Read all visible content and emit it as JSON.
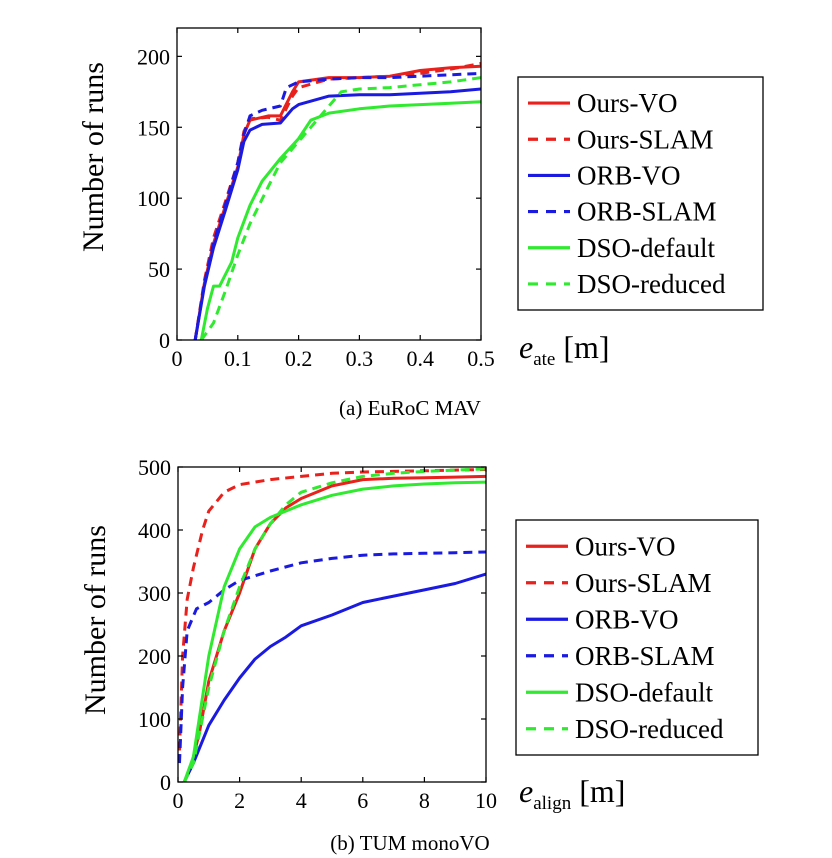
{
  "chart_data": [
    {
      "type": "line",
      "caption": "(a) EuRoC MAV",
      "ylabel": "Number of runs",
      "xlabel_main": "e",
      "xlabel_sub": "ate",
      "xlabel_unit": "[m]",
      "xlim": [
        0,
        0.5
      ],
      "ylim": [
        0,
        220
      ],
      "xticks": [
        0,
        0.1,
        0.2,
        0.3,
        0.4,
        0.5
      ],
      "yticks": [
        0,
        50,
        100,
        150,
        200
      ],
      "xtick_labels": [
        "0",
        "0.1",
        "0.2",
        "0.3",
        "0.4",
        "0.5"
      ],
      "ytick_labels": [
        "0",
        "50",
        "100",
        "150",
        "200"
      ],
      "legend_position": "right",
      "series": [
        {
          "name": "Ours-VO",
          "name_a": "Ours",
          "name_b": "VO",
          "color": "#e8211c",
          "dash": false,
          "points": [
            [
              0.03,
              0
            ],
            [
              0.045,
              40
            ],
            [
              0.06,
              68
            ],
            [
              0.08,
              95
            ],
            [
              0.1,
              122
            ],
            [
              0.11,
              145
            ],
            [
              0.12,
              155
            ],
            [
              0.15,
              158
            ],
            [
              0.17,
              158
            ],
            [
              0.19,
              175
            ],
            [
              0.2,
              182
            ],
            [
              0.25,
              185
            ],
            [
              0.3,
              185
            ],
            [
              0.35,
              186
            ],
            [
              0.4,
              190
            ],
            [
              0.45,
              192
            ],
            [
              0.5,
              193
            ]
          ]
        },
        {
          "name": "Ours-SLAM",
          "name_a": "Ours",
          "name_b": "SLAM",
          "color": "#e8211c",
          "dash": true,
          "points": [
            [
              0.03,
              0
            ],
            [
              0.045,
              42
            ],
            [
              0.06,
              72
            ],
            [
              0.08,
              98
            ],
            [
              0.1,
              125
            ],
            [
              0.11,
              147
            ],
            [
              0.12,
              156
            ],
            [
              0.15,
              157
            ],
            [
              0.17,
              155
            ],
            [
              0.19,
              172
            ],
            [
              0.2,
              178
            ],
            [
              0.25,
              184
            ],
            [
              0.3,
              185
            ],
            [
              0.35,
              186
            ],
            [
              0.4,
              188
            ],
            [
              0.45,
              191
            ],
            [
              0.5,
              195
            ]
          ]
        },
        {
          "name": "ORB-VO",
          "name_a": "ORB",
          "name_b": "VO",
          "color": "#1a1ae0",
          "dash": false,
          "points": [
            [
              0.03,
              0
            ],
            [
              0.045,
              38
            ],
            [
              0.06,
              65
            ],
            [
              0.08,
              92
            ],
            [
              0.1,
              120
            ],
            [
              0.11,
              140
            ],
            [
              0.12,
              148
            ],
            [
              0.14,
              152
            ],
            [
              0.17,
              153
            ],
            [
              0.19,
              163
            ],
            [
              0.2,
              166
            ],
            [
              0.25,
              172
            ],
            [
              0.3,
              173
            ],
            [
              0.35,
              173
            ],
            [
              0.4,
              174
            ],
            [
              0.45,
              175
            ],
            [
              0.5,
              177
            ]
          ]
        },
        {
          "name": "ORB-SLAM",
          "name_a": "ORB",
          "name_b": "SLAM",
          "color": "#1a1ae0",
          "dash": true,
          "points": [
            [
              0.03,
              0
            ],
            [
              0.045,
              40
            ],
            [
              0.06,
              68
            ],
            [
              0.08,
              96
            ],
            [
              0.1,
              125
            ],
            [
              0.11,
              145
            ],
            [
              0.12,
              158
            ],
            [
              0.14,
              162
            ],
            [
              0.17,
              165
            ],
            [
              0.18,
              178
            ],
            [
              0.2,
              182
            ],
            [
              0.25,
              184
            ],
            [
              0.3,
              185
            ],
            [
              0.35,
              185
            ],
            [
              0.4,
              186
            ],
            [
              0.45,
              187
            ],
            [
              0.5,
              188
            ]
          ]
        },
        {
          "name": "DSO-default",
          "name_a": "DSO",
          "name_b": "default",
          "color": "#2fea2f",
          "dash": false,
          "points": [
            [
              0.04,
              0
            ],
            [
              0.05,
              22
            ],
            [
              0.06,
              38
            ],
            [
              0.07,
              38
            ],
            [
              0.09,
              55
            ],
            [
              0.1,
              72
            ],
            [
              0.12,
              95
            ],
            [
              0.14,
              112
            ],
            [
              0.17,
              128
            ],
            [
              0.2,
              142
            ],
            [
              0.22,
              155
            ],
            [
              0.25,
              160
            ],
            [
              0.3,
              163
            ],
            [
              0.35,
              165
            ],
            [
              0.4,
              166
            ],
            [
              0.45,
              167
            ],
            [
              0.5,
              168
            ]
          ]
        },
        {
          "name": "DSO-reduced",
          "name_a": "DSO",
          "name_b": "reduced",
          "color": "#2fea2f",
          "dash": true,
          "points": [
            [
              0.04,
              0
            ],
            [
              0.06,
              12
            ],
            [
              0.08,
              35
            ],
            [
              0.1,
              60
            ],
            [
              0.12,
              82
            ],
            [
              0.15,
              108
            ],
            [
              0.17,
              125
            ],
            [
              0.2,
              140
            ],
            [
              0.22,
              150
            ],
            [
              0.25,
              165
            ],
            [
              0.27,
              175
            ],
            [
              0.3,
              177
            ],
            [
              0.35,
              178
            ],
            [
              0.4,
              180
            ],
            [
              0.45,
              182
            ],
            [
              0.5,
              185
            ]
          ]
        }
      ]
    },
    {
      "type": "line",
      "caption": "(b) TUM monoVO",
      "ylabel": "Number of runs",
      "xlabel_main": "e",
      "xlabel_sub": "align",
      "xlabel_unit": "[m]",
      "xlim": [
        0,
        10
      ],
      "ylim": [
        0,
        500
      ],
      "xticks": [
        0,
        2,
        4,
        6,
        8,
        10
      ],
      "yticks": [
        0,
        100,
        200,
        300,
        400,
        500
      ],
      "xtick_labels": [
        "0",
        "2",
        "4",
        "6",
        "8",
        "10"
      ],
      "ytick_labels": [
        "0",
        "100",
        "200",
        "300",
        "400",
        "500"
      ],
      "legend_position": "right",
      "series": [
        {
          "name": "Ours-VO",
          "name_a": "Ours",
          "name_b": "VO",
          "color": "#e8211c",
          "dash": false,
          "points": [
            [
              0.2,
              0
            ],
            [
              0.4,
              20
            ],
            [
              0.7,
              80
            ],
            [
              1,
              160
            ],
            [
              1.5,
              240
            ],
            [
              2,
              300
            ],
            [
              2.5,
              370
            ],
            [
              3,
              410
            ],
            [
              3.5,
              435
            ],
            [
              4,
              450
            ],
            [
              5,
              470
            ],
            [
              6,
              480
            ],
            [
              7,
              482
            ],
            [
              8,
              483
            ],
            [
              9,
              484
            ],
            [
              10,
              485
            ]
          ]
        },
        {
          "name": "Ours-SLAM",
          "name_a": "Ours",
          "name_b": "SLAM",
          "color": "#e8211c",
          "dash": true,
          "points": [
            [
              0.05,
              50
            ],
            [
              0.15,
              200
            ],
            [
              0.3,
              290
            ],
            [
              0.5,
              340
            ],
            [
              0.8,
              400
            ],
            [
              1,
              430
            ],
            [
              1.5,
              460
            ],
            [
              2,
              472
            ],
            [
              3,
              480
            ],
            [
              4,
              485
            ],
            [
              5,
              490
            ],
            [
              6,
              492
            ],
            [
              7,
              493
            ],
            [
              8,
              494
            ],
            [
              9,
              495
            ],
            [
              10,
              496
            ]
          ]
        },
        {
          "name": "ORB-VO",
          "name_a": "ORB",
          "name_b": "VO",
          "color": "#1a1ae0",
          "dash": false,
          "points": [
            [
              0.2,
              0
            ],
            [
              0.5,
              30
            ],
            [
              1,
              90
            ],
            [
              1.5,
              130
            ],
            [
              2,
              165
            ],
            [
              2.5,
              195
            ],
            [
              3,
              215
            ],
            [
              3.5,
              230
            ],
            [
              4,
              248
            ],
            [
              5,
              265
            ],
            [
              6,
              285
            ],
            [
              7,
              295
            ],
            [
              8,
              305
            ],
            [
              9,
              315
            ],
            [
              10,
              330
            ]
          ]
        },
        {
          "name": "ORB-SLAM",
          "name_a": "ORB",
          "name_b": "SLAM",
          "color": "#1a1ae0",
          "dash": true,
          "points": [
            [
              0.05,
              30
            ],
            [
              0.15,
              150
            ],
            [
              0.3,
              240
            ],
            [
              0.6,
              275
            ],
            [
              1,
              285
            ],
            [
              1.5,
              305
            ],
            [
              2,
              320
            ],
            [
              3,
              335
            ],
            [
              4,
              348
            ],
            [
              5,
              355
            ],
            [
              6,
              360
            ],
            [
              7,
              362
            ],
            [
              8,
              363
            ],
            [
              9,
              364
            ],
            [
              10,
              365
            ]
          ]
        },
        {
          "name": "DSO-default",
          "name_a": "DSO",
          "name_b": "default",
          "color": "#2fea2f",
          "dash": false,
          "points": [
            [
              0.2,
              0
            ],
            [
              0.5,
              40
            ],
            [
              1,
              200
            ],
            [
              1.5,
              310
            ],
            [
              2,
              370
            ],
            [
              2.5,
              405
            ],
            [
              3,
              420
            ],
            [
              3.5,
              430
            ],
            [
              4,
              440
            ],
            [
              5,
              455
            ],
            [
              6,
              465
            ],
            [
              7,
              470
            ],
            [
              8,
              473
            ],
            [
              9,
              475
            ],
            [
              10,
              476
            ]
          ]
        },
        {
          "name": "DSO-reduced",
          "name_a": "DSO",
          "name_b": "reduced",
          "color": "#2fea2f",
          "dash": true,
          "points": [
            [
              0.2,
              0
            ],
            [
              0.5,
              30
            ],
            [
              1,
              150
            ],
            [
              1.5,
              240
            ],
            [
              2,
              310
            ],
            [
              2.5,
              370
            ],
            [
              3,
              410
            ],
            [
              3.5,
              440
            ],
            [
              4,
              460
            ],
            [
              5,
              475
            ],
            [
              6,
              485
            ],
            [
              7,
              490
            ],
            [
              8,
              493
            ],
            [
              9,
              495
            ],
            [
              10,
              497
            ]
          ]
        }
      ]
    }
  ]
}
